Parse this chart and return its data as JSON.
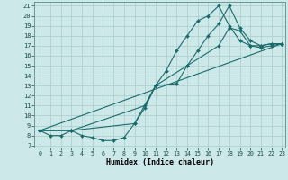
{
  "xlabel": "Humidex (Indice chaleur)",
  "background_color": "#cde8e8",
  "grid_color": "#aacccc",
  "line_color": "#1a6b6b",
  "xlim": [
    -0.5,
    23.3
  ],
  "ylim": [
    6.8,
    21.4
  ],
  "xticks": [
    0,
    1,
    2,
    3,
    4,
    5,
    6,
    7,
    8,
    9,
    10,
    11,
    12,
    13,
    14,
    15,
    16,
    17,
    18,
    19,
    20,
    21,
    22,
    23
  ],
  "yticks": [
    7,
    8,
    9,
    10,
    11,
    12,
    13,
    14,
    15,
    16,
    17,
    18,
    19,
    20,
    21
  ],
  "series": [
    {
      "x": [
        0,
        1,
        2,
        3,
        4,
        5,
        6,
        7,
        8,
        9,
        10,
        11,
        12,
        13,
        14,
        15,
        16,
        17,
        18,
        19,
        20,
        21,
        22,
        23
      ],
      "y": [
        8.5,
        8.0,
        8.0,
        8.5,
        8.0,
        7.8,
        7.5,
        7.5,
        7.8,
        9.2,
        10.8,
        13.0,
        14.5,
        16.5,
        18.0,
        19.5,
        20.0,
        21.0,
        19.0,
        17.5,
        17.0,
        17.0,
        17.2,
        17.2
      ]
    },
    {
      "x": [
        0,
        3,
        10,
        11,
        13,
        14,
        15,
        16,
        17,
        18,
        19,
        20,
        21,
        22,
        23
      ],
      "y": [
        8.5,
        8.5,
        11.0,
        13.0,
        13.2,
        15.0,
        16.5,
        18.0,
        19.2,
        21.0,
        18.8,
        17.5,
        17.0,
        17.2,
        17.2
      ]
    },
    {
      "x": [
        0,
        23
      ],
      "y": [
        8.5,
        17.2
      ]
    },
    {
      "x": [
        0,
        3,
        9,
        11,
        14,
        17,
        18,
        19,
        20,
        21,
        22,
        23
      ],
      "y": [
        8.5,
        8.5,
        9.2,
        13.0,
        15.0,
        17.0,
        18.8,
        18.5,
        17.0,
        16.8,
        17.0,
        17.2
      ]
    }
  ]
}
